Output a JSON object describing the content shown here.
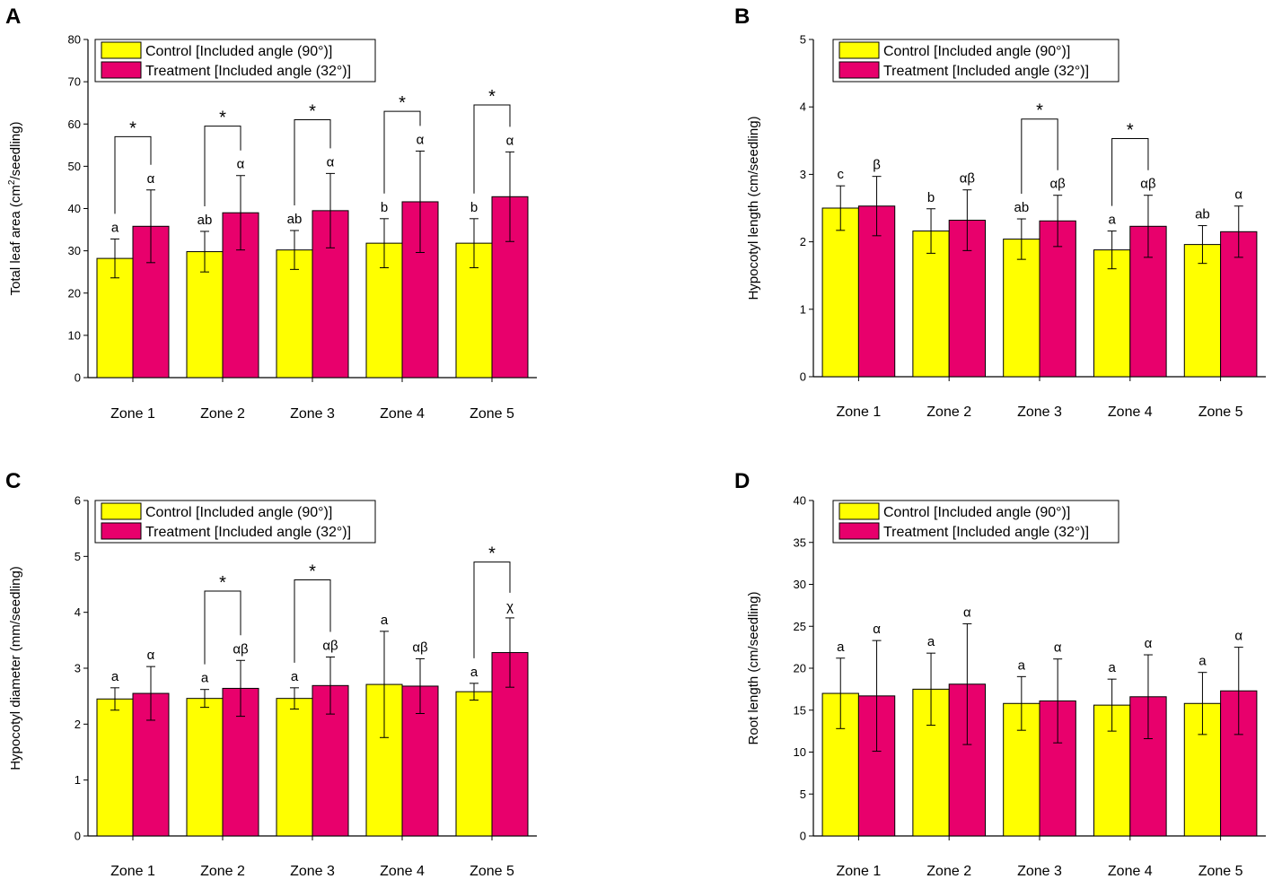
{
  "figure": {
    "colors": {
      "control": "#ffff00",
      "treatment": "#e8006c",
      "axis": "#000000"
    }
  },
  "chart_data": [
    {
      "type": "bar",
      "panel": "A",
      "ylabel": "Total leaf area (cm²/seedling)",
      "ylabel_pre": "Total leaf area (cm",
      "ylabel_sup": "2",
      "ylabel_post": "/seedling)",
      "ylim": [
        0,
        80
      ],
      "yticks": [
        "0",
        "10",
        "20",
        "30",
        "40",
        "50",
        "60",
        "70",
        "80"
      ],
      "categories": [
        "Zone 1",
        "Zone 2",
        "Zone 3",
        "Zone 4",
        "Zone 5"
      ],
      "series": [
        {
          "name": "Control [Included angle (90°)]",
          "values": [
            28.2,
            29.8,
            30.2,
            31.8,
            31.8
          ],
          "errors": [
            4.6,
            4.8,
            4.6,
            5.8,
            5.8
          ],
          "letters": [
            "a",
            "ab",
            "ab",
            "b",
            "b"
          ]
        },
        {
          "name": "Treatment [Included angle (32°)]",
          "values": [
            35.8,
            39.0,
            39.5,
            41.6,
            42.8
          ],
          "errors": [
            8.6,
            8.8,
            8.8,
            12.0,
            10.6
          ],
          "letters": [
            "α",
            "α",
            "α",
            "α",
            "α"
          ]
        }
      ],
      "significance": [
        {
          "category": 0,
          "label": "*",
          "y": 57
        },
        {
          "category": 1,
          "label": "*",
          "y": 59.5
        },
        {
          "category": 2,
          "label": "*",
          "y": 61
        },
        {
          "category": 3,
          "label": "*",
          "y": 63
        },
        {
          "category": 4,
          "label": "*",
          "y": 64.5
        }
      ]
    },
    {
      "type": "bar",
      "panel": "B",
      "ylabel": "Hypocotyl length (cm/seedling)",
      "ylim": [
        0,
        5
      ],
      "yticks": [
        "0",
        "1",
        "2",
        "3",
        "4",
        "5"
      ],
      "categories": [
        "Zone 1",
        "Zone 2",
        "Zone 3",
        "Zone 4",
        "Zone 5"
      ],
      "series": [
        {
          "name": "Control [Included angle (90°)]",
          "values": [
            2.5,
            2.16,
            2.04,
            1.88,
            1.96
          ],
          "errors": [
            0.33,
            0.33,
            0.3,
            0.28,
            0.28
          ],
          "letters": [
            "c",
            "b",
            "ab",
            "a",
            "ab"
          ]
        },
        {
          "name": "Treatment [Included angle (32°)]",
          "values": [
            2.53,
            2.32,
            2.31,
            2.23,
            2.15
          ],
          "errors": [
            0.44,
            0.45,
            0.38,
            0.46,
            0.38
          ],
          "letters": [
            "β",
            "αβ",
            "αβ",
            "αβ",
            "α"
          ]
        }
      ],
      "significance": [
        {
          "category": 2,
          "label": "*",
          "y": 3.82
        },
        {
          "category": 3,
          "label": "*",
          "y": 3.53
        }
      ]
    },
    {
      "type": "bar",
      "panel": "C",
      "ylabel": "Hypocotyl diameter (mm/seedling)",
      "ylim": [
        0,
        6
      ],
      "yticks": [
        "0",
        "1",
        "2",
        "3",
        "4",
        "5",
        "6"
      ],
      "categories": [
        "Zone 1",
        "Zone 2",
        "Zone 3",
        "Zone 4",
        "Zone 5"
      ],
      "series": [
        {
          "name": "Control [Included angle (90°)]",
          "values": [
            2.45,
            2.46,
            2.46,
            2.71,
            2.58
          ],
          "errors": [
            0.2,
            0.16,
            0.19,
            0.95,
            0.15
          ],
          "letters": [
            "a",
            "a",
            "a",
            "a",
            "a"
          ]
        },
        {
          "name": "Treatment [Included angle (32°)]",
          "values": [
            2.55,
            2.64,
            2.69,
            2.68,
            3.28
          ],
          "errors": [
            0.48,
            0.5,
            0.51,
            0.49,
            0.62
          ],
          "letters": [
            "α",
            "αβ",
            "αβ",
            "αβ",
            "χ"
          ]
        }
      ],
      "significance": [
        {
          "category": 1,
          "label": "*",
          "y": 4.38
        },
        {
          "category": 2,
          "label": "*",
          "y": 4.58
        },
        {
          "category": 4,
          "label": "*",
          "y": 4.9
        }
      ]
    },
    {
      "type": "bar",
      "panel": "D",
      "ylabel": "Root length (cm/seedling)",
      "ylim": [
        0,
        40
      ],
      "yticks": [
        "0",
        "5",
        "10",
        "15",
        "20",
        "25",
        "30",
        "35",
        "40"
      ],
      "categories": [
        "Zone 1",
        "Zone 2",
        "Zone 3",
        "Zone 4",
        "Zone 5"
      ],
      "series": [
        {
          "name": "Control [Included angle (90°)]",
          "values": [
            17.0,
            17.5,
            15.8,
            15.6,
            15.8
          ],
          "errors": [
            4.2,
            4.3,
            3.2,
            3.1,
            3.7
          ],
          "letters": [
            "a",
            "a",
            "a",
            "a",
            "a"
          ]
        },
        {
          "name": "Treatment [Included angle (32°)]",
          "values": [
            16.7,
            18.1,
            16.1,
            16.6,
            17.3
          ],
          "errors": [
            6.6,
            7.2,
            5.0,
            5.0,
            5.2
          ],
          "letters": [
            "α",
            "α",
            "α",
            "α",
            "α"
          ]
        }
      ],
      "significance": []
    }
  ]
}
